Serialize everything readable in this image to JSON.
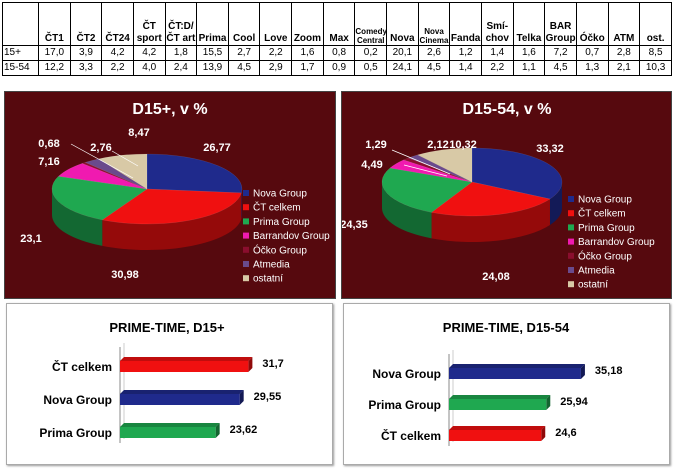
{
  "ratings_table": {
    "columns": [
      "ČT1",
      "ČT2",
      "ČT24",
      "ČT sport",
      "ČT:D/ ČT art",
      "Prima",
      "Cool",
      "Love",
      "Zoom",
      "Max",
      "Comedy Central",
      "Nova",
      "Nova Cinema",
      "Fanda",
      "Smí- chov",
      "Telka",
      "BAR Group",
      "Óčko",
      "ATM",
      "ost."
    ],
    "rows": [
      {
        "label": "15+",
        "values": [
          "17,0",
          "3,9",
          "4,2",
          "4,2",
          "1,8",
          "15,5",
          "2,7",
          "2,2",
          "1,6",
          "0,8",
          "0,2",
          "20,1",
          "2,6",
          "1,2",
          "1,4",
          "1,6",
          "7,2",
          "0,7",
          "2,8",
          "8,5"
        ]
      },
      {
        "label": "15-54",
        "values": [
          "12,2",
          "3,3",
          "2,2",
          "4,0",
          "2,4",
          "13,9",
          "4,5",
          "2,9",
          "1,7",
          "0,9",
          "0,5",
          "24,1",
          "4,5",
          "1,4",
          "2,2",
          "1,1",
          "4,5",
          "1,3",
          "2,1",
          "10,3"
        ]
      }
    ]
  },
  "chart_data": [
    {
      "type": "pie",
      "title": "D15+, v %",
      "legend": "right",
      "slices": [
        {
          "name": "Nova Group",
          "value": 26.77,
          "label": "26,77",
          "color": "#1f2a8c"
        },
        {
          "name": "ČT celkem",
          "value": 30.98,
          "label": "30,98",
          "color": "#f01010"
        },
        {
          "name": "Prima Group",
          "value": 23.1,
          "label": "23,1",
          "color": "#1fa850"
        },
        {
          "name": "Barrandov Group",
          "value": 7.16,
          "label": "7,16",
          "color": "#f01ab0"
        },
        {
          "name": "Óčko Group",
          "value": 0.68,
          "label": "0,68",
          "color": "#8a0e2e"
        },
        {
          "name": "Atmedia",
          "value": 2.76,
          "label": "2,76",
          "color": "#6a4a8c"
        },
        {
          "name": "ostatní",
          "value": 8.47,
          "label": "8,47",
          "color": "#d8c9a6"
        }
      ]
    },
    {
      "type": "pie",
      "title": "D15-54, v %",
      "legend": "right",
      "slices": [
        {
          "name": "Nova Group",
          "value": 33.32,
          "label": "33,32",
          "color": "#1f2a8c"
        },
        {
          "name": "ČT celkem",
          "value": 24.08,
          "label": "24,08",
          "color": "#f01010"
        },
        {
          "name": "Prima Group",
          "value": 24.35,
          "label": "24,35",
          "color": "#1fa850"
        },
        {
          "name": "Barrandov Group",
          "value": 4.49,
          "label": "4,49",
          "color": "#f01ab0"
        },
        {
          "name": "Óčko Group",
          "value": 1.29,
          "label": "1,29",
          "color": "#8a0e2e"
        },
        {
          "name": "Atmedia",
          "value": 2.12,
          "label": "2,12",
          "color": "#6a4a8c"
        },
        {
          "name": "ostatní",
          "value": 10.32,
          "label": "10,32",
          "color": "#d8c9a6"
        }
      ]
    },
    {
      "type": "bar",
      "orientation": "horizontal",
      "title": "PRIME-TIME, D15+",
      "categories": [
        "ČT celkem",
        "Nova Group",
        "Prima Group"
      ],
      "values": [
        31.7,
        29.55,
        23.62
      ],
      "labels": [
        "31,7",
        "29,55",
        "23,62"
      ],
      "colors": [
        "#f01010",
        "#1f2a8c",
        "#1fa850"
      ],
      "xlim": [
        0,
        40
      ]
    },
    {
      "type": "bar",
      "orientation": "horizontal",
      "title": "PRIME-TIME, D15-54",
      "categories": [
        "Nova Group",
        "Prima Group",
        "ČT celkem"
      ],
      "values": [
        35.18,
        25.94,
        24.6
      ],
      "labels": [
        "35,18",
        "25,94",
        "24,6"
      ],
      "colors": [
        "#1f2a8c",
        "#1fa850",
        "#f01010"
      ],
      "xlim": [
        0,
        40
      ]
    }
  ]
}
